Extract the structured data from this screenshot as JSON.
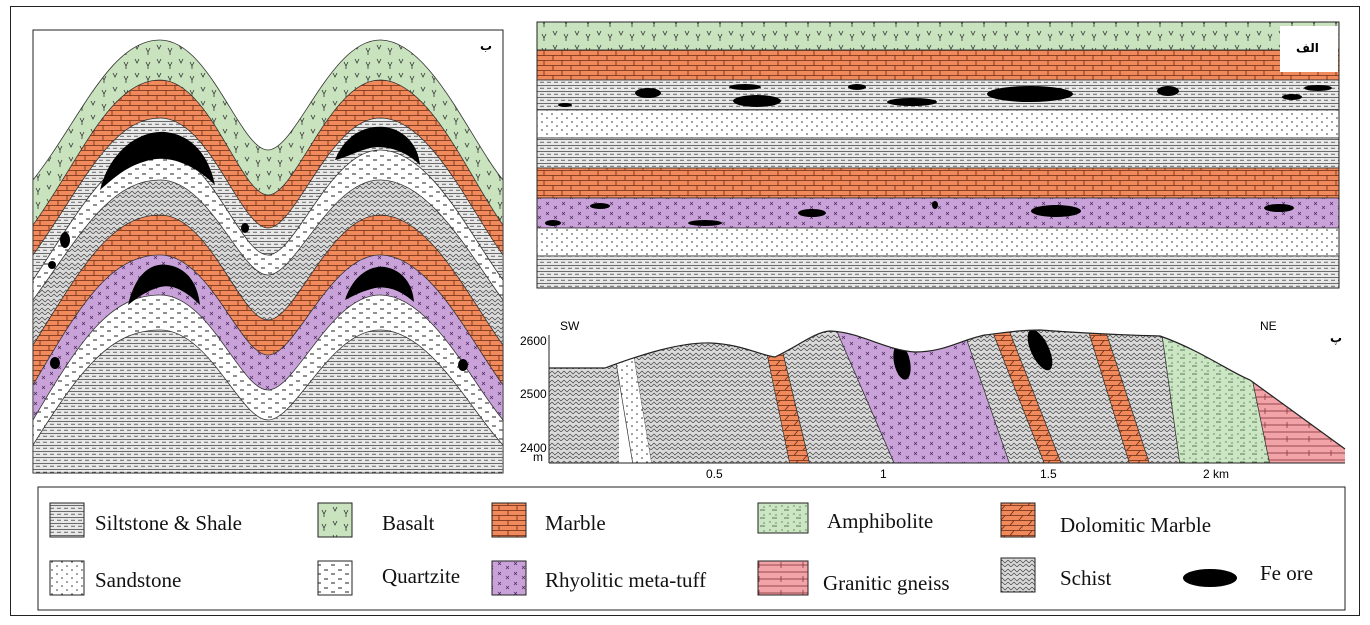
{
  "panels": {
    "fold": {
      "label": "ب"
    },
    "strat": {
      "label": "الف"
    },
    "section": {
      "label": "پ",
      "sw": "SW",
      "ne": "NE",
      "y_unit": "m",
      "y_ticks": [
        "2600",
        "2500",
        "2400"
      ],
      "x_ticks": [
        "0.5",
        "1",
        "1.5",
        "2 km"
      ]
    }
  },
  "legend": {
    "items": [
      {
        "id": "siltstone",
        "label": "Siltstone & Shale",
        "color": "#e6e6e6"
      },
      {
        "id": "basalt",
        "label": "Basalt",
        "color": "#c8e3bd"
      },
      {
        "id": "marble",
        "label": "Marble",
        "color": "#f0895c"
      },
      {
        "id": "amphibolite",
        "label": "Amphibolite",
        "color": "#cbe6c3"
      },
      {
        "id": "dolomitic",
        "label": "Dolomitic Marble",
        "color": "#f0895c"
      },
      {
        "id": "sandstone",
        "label": "Sandstone",
        "color": "#ffffff"
      },
      {
        "id": "quartzite",
        "label": "Quartzite",
        "color": "#ffffff"
      },
      {
        "id": "rhyolitic",
        "label": "Rhyolitic meta-tuff",
        "color": "#c9a2d9"
      },
      {
        "id": "granitic",
        "label": "Granitic gneiss",
        "color": "#f2a3a8"
      },
      {
        "id": "schist",
        "label": "Schist",
        "color": "#dadada"
      },
      {
        "id": "feore",
        "label": "Fe ore",
        "color": "#000000"
      }
    ]
  }
}
